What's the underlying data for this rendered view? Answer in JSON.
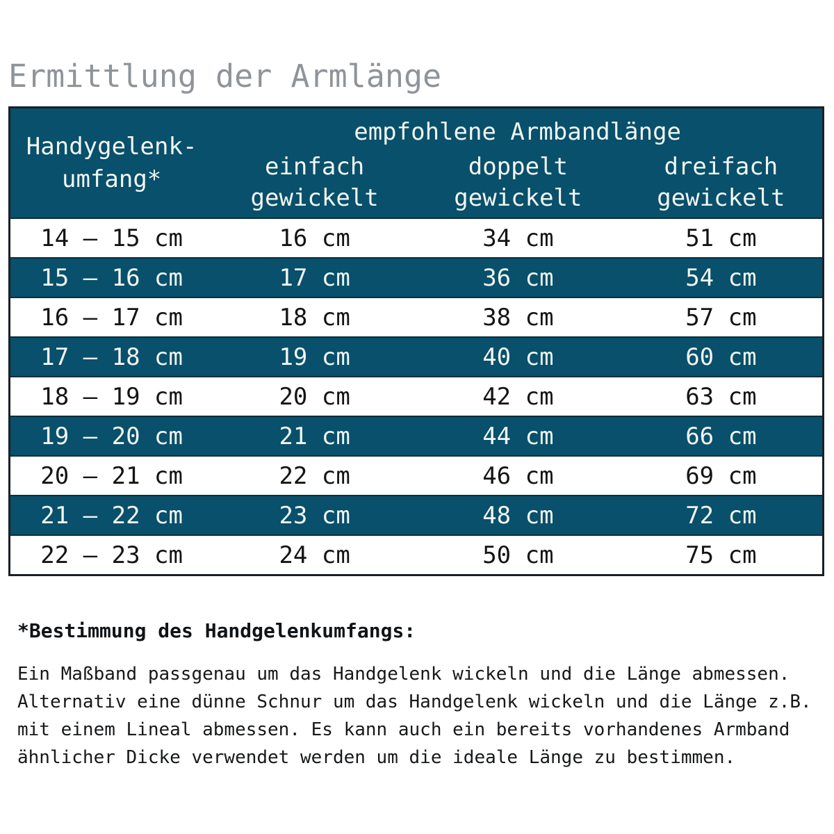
{
  "title": "Ermittlung der Armlänge",
  "colors": {
    "teal_row": "#08506b",
    "row_separator": "#0a2e3d",
    "outer_border": "#1a2026",
    "title_gray": "#8f9499",
    "light_text": "#f2f6f3",
    "dark_text": "#141414"
  },
  "table": {
    "header": {
      "wrist_line1": "Handygelenk-",
      "wrist_line2": "umfang*",
      "group": "empfohlene Armbandlänge",
      "sub": [
        [
          "einfach",
          "gewickelt"
        ],
        [
          "doppelt",
          "gewickelt"
        ],
        [
          "dreifach",
          "gewickelt"
        ]
      ]
    },
    "rows": [
      [
        "14 – 15 cm",
        "16 cm",
        "34 cm",
        "51 cm"
      ],
      [
        "15 – 16 cm",
        "17 cm",
        "36 cm",
        "54 cm"
      ],
      [
        "16 – 17 cm",
        "18 cm",
        "38 cm",
        "57 cm"
      ],
      [
        "17 – 18 cm",
        "19 cm",
        "40 cm",
        "60 cm"
      ],
      [
        "18 – 19 cm",
        "20 cm",
        "42 cm",
        "63 cm"
      ],
      [
        "19 – 20 cm",
        "21 cm",
        "44 cm",
        "66 cm"
      ],
      [
        "20 – 21 cm",
        "22 cm",
        "46 cm",
        "69 cm"
      ],
      [
        "21 – 22 cm",
        "23 cm",
        "48 cm",
        "72 cm"
      ],
      [
        "22 – 23 cm",
        "24 cm",
        "50 cm",
        "75 cm"
      ]
    ]
  },
  "footnote": {
    "heading": "*Bestimmung des Handgelenkumfangs:",
    "lines": [
      "Ein Maßband passgenau um das Handgelenk wickeln und die Länge abmessen.",
      "Alternativ eine dünne Schnur um das Handgelenk wickeln und die Länge z.B.",
      "mit einem Lineal abmessen. Es kann auch ein bereits vorhandenes Armband",
      "ähnlicher Dicke verwendet werden um die ideale Länge zu bestimmen."
    ]
  }
}
